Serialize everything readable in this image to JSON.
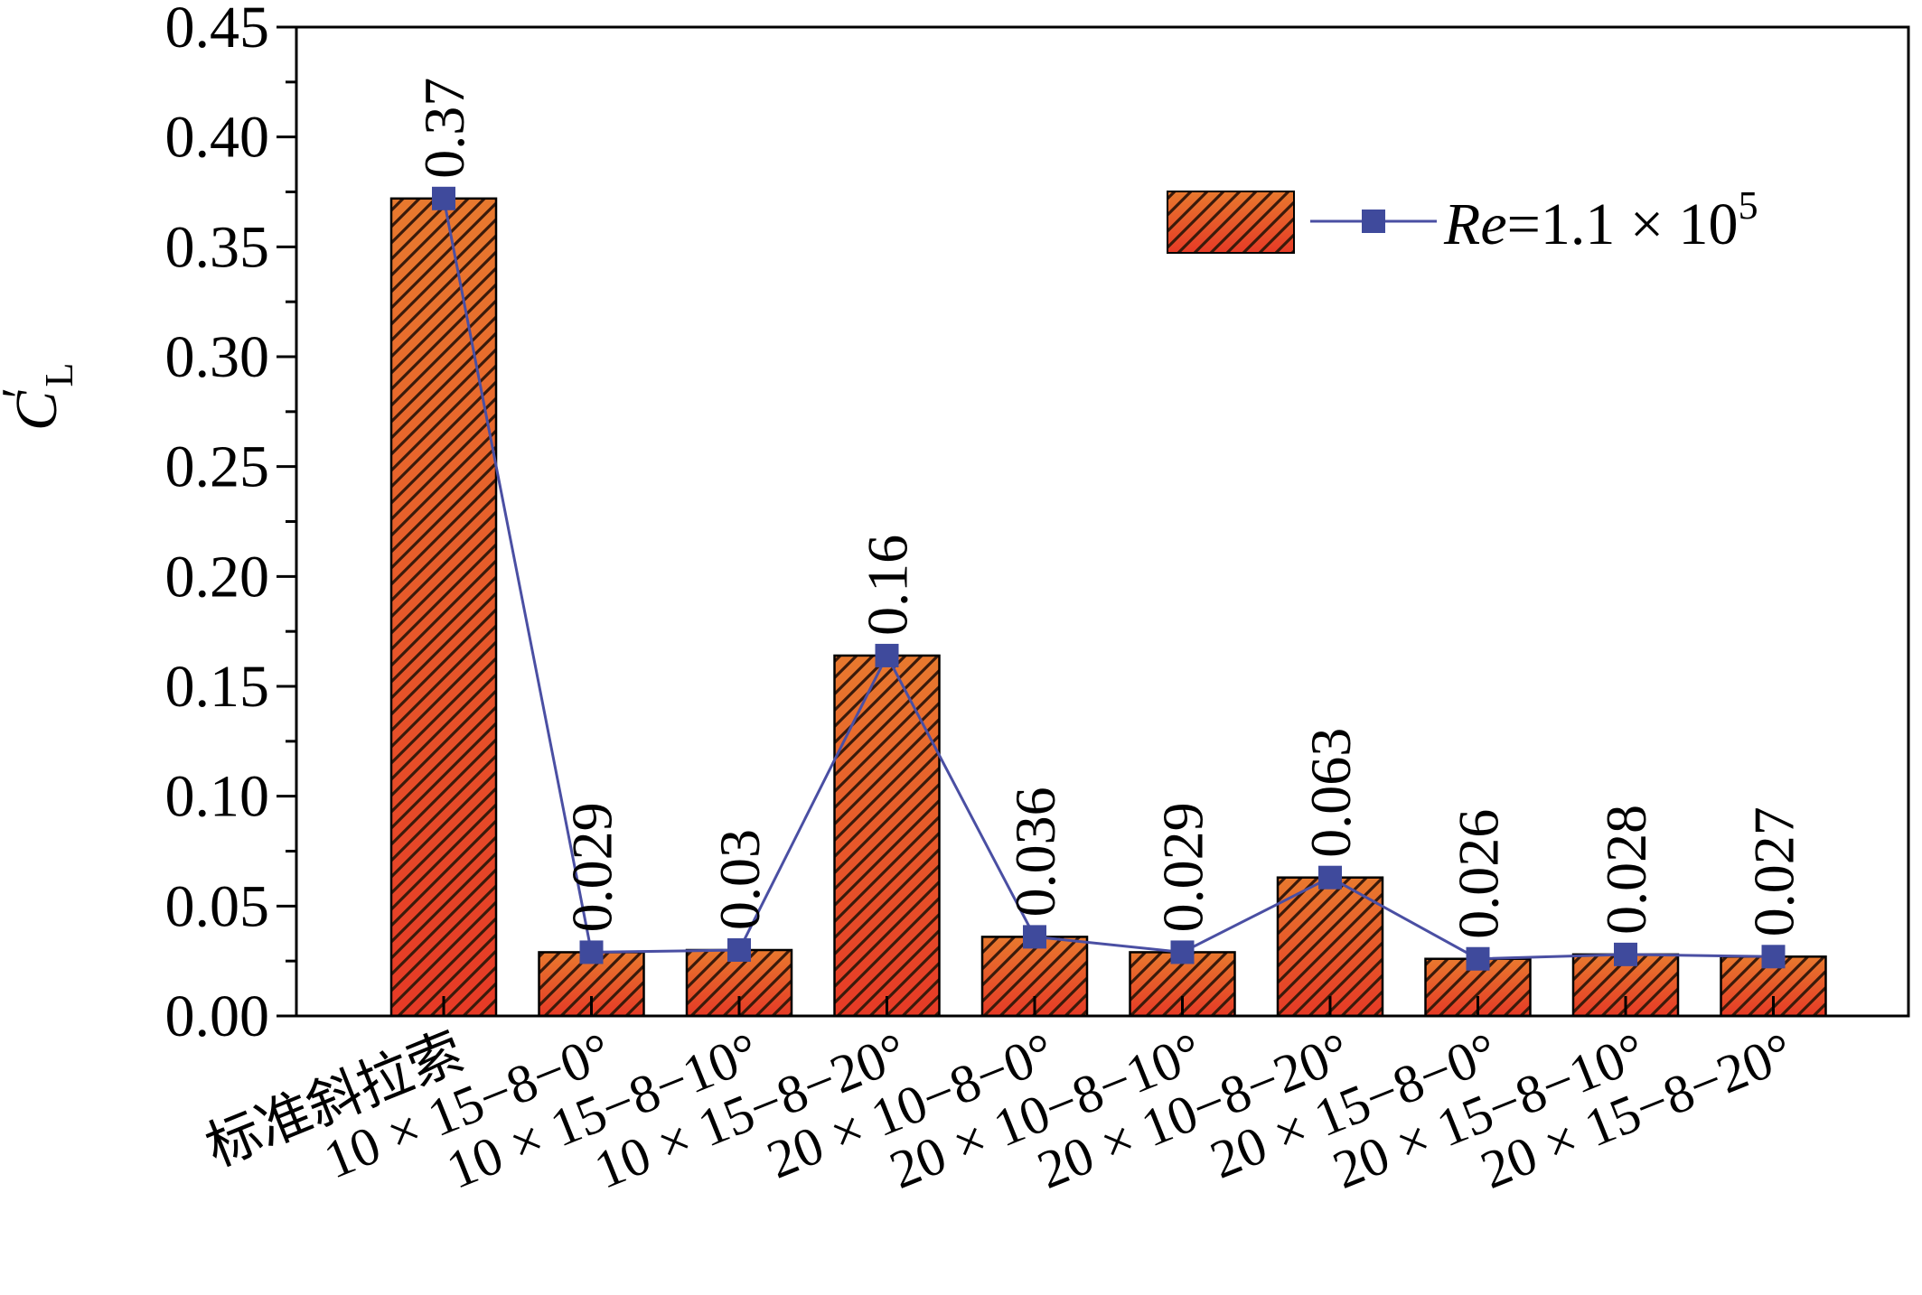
{
  "chart_data": {
    "type": "bar",
    "categories": [
      "标准斜拉索",
      "10 × 15−8−0°",
      "10 × 15−8−10°",
      "10 × 15−8−20°",
      "20 × 10−8−0°",
      "20 × 10−8−10°",
      "20 × 10−8−20°",
      "20 × 15−8−0°",
      "20 × 15−8−10°",
      "20 × 15−8−20°"
    ],
    "values": [
      0.372,
      0.029,
      0.03,
      0.164,
      0.036,
      0.029,
      0.063,
      0.026,
      0.028,
      0.027
    ],
    "data_labels": [
      "0.37",
      "0.029",
      "0.03",
      "0.16",
      "0.036",
      "0.029",
      "0.063",
      "0.026",
      "0.028",
      "0.027"
    ],
    "overlay": "line-with-square-markers",
    "ylim": [
      0,
      0.45
    ],
    "yticks": [
      "0.00",
      "0.05",
      "0.10",
      "0.15",
      "0.20",
      "0.25",
      "0.30",
      "0.35",
      "0.40",
      "0.45"
    ],
    "ylabel": {
      "main": "C",
      "prime": "′",
      "sub": "L"
    },
    "legend": {
      "position": "top-right",
      "label_italic": "Re",
      "label_rest": "=1.1 × 10",
      "label_sup": "5"
    },
    "grid": false,
    "colors": {
      "bar_top": "#e8792e",
      "bar_bottom": "#e63a26",
      "hatch": "#3a1a0a",
      "line": "#4a4fa3",
      "marker": "#3f4a9c",
      "axis": "#000000"
    }
  }
}
